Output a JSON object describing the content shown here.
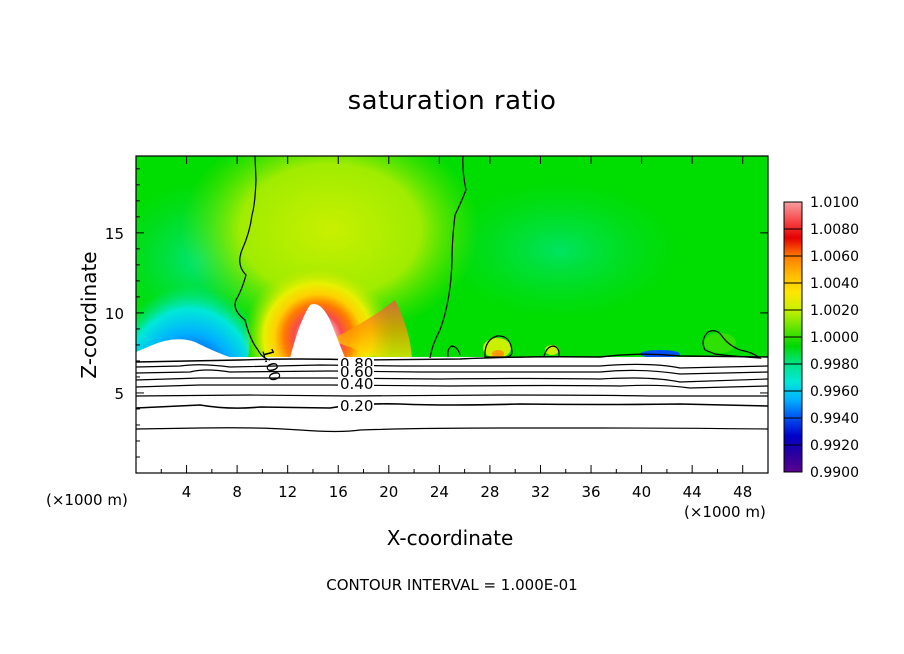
{
  "chart_data": {
    "type": "heatmap",
    "title": "saturation ratio",
    "xlabel": "X-coordinate",
    "ylabel": "Z-coordinate",
    "x_unit": "(×1000 m)",
    "y_unit": "(×1000 m)",
    "xlim": [
      0,
      50
    ],
    "ylim": [
      0,
      19.8
    ],
    "x_ticks": [
      4,
      8,
      12,
      16,
      20,
      24,
      28,
      32,
      36,
      40,
      44,
      48
    ],
    "y_ticks": [
      5,
      10,
      15
    ],
    "footer": "CONTOUR INTERVAL = 1.000E-01",
    "colorbar": {
      "range": [
        0.99,
        1.01
      ],
      "labels": [
        "1.0100",
        "1.0080",
        "1.0060",
        "1.0040",
        "1.0020",
        "1.0000",
        "0.9980",
        "0.9960",
        "0.9940",
        "0.9920",
        "0.9900"
      ],
      "colors": [
        "#f59ea0",
        "#f84b4b",
        "#e60000",
        "#ff7a00",
        "#ffb800",
        "#ffe600",
        "#c8f000",
        "#60e400",
        "#00d800",
        "#00e48a",
        "#00e8d8",
        "#00b0ff",
        "#0050f0",
        "#0000c8",
        "#2800a0",
        "#5a0090"
      ]
    },
    "contour_labels": [
      "1.00",
      "0.80",
      "0.60",
      "0.40",
      "0.20"
    ]
  },
  "colors": {
    "background_field": "#00e000",
    "contour": "#000000"
  }
}
